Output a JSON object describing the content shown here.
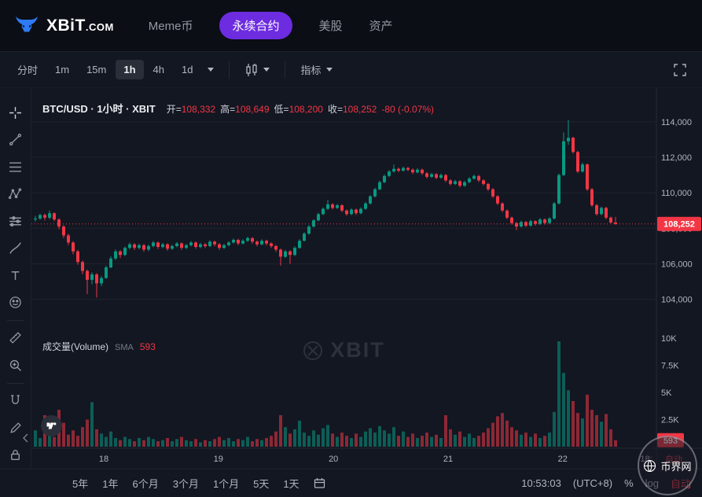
{
  "header": {
    "logo_text": "XBiT",
    "logo_suffix": ".COM",
    "nav": [
      {
        "label": "Meme币",
        "active": false
      },
      {
        "label": "永续合约",
        "active": true
      },
      {
        "label": "美股",
        "active": false
      },
      {
        "label": "资产",
        "active": false
      }
    ]
  },
  "toolbar": {
    "intervals": [
      {
        "label": "分时",
        "active": false
      },
      {
        "label": "1m",
        "active": false
      },
      {
        "label": "15m",
        "active": false
      },
      {
        "label": "1h",
        "active": true
      },
      {
        "label": "4h",
        "active": false
      },
      {
        "label": "1d",
        "active": false
      }
    ],
    "indicators_label": "指标"
  },
  "legend": {
    "symbol": "BTC/USD · 1小时 · XBIT",
    "o_label": "开=",
    "o_value": "108,332",
    "h_label": "高=",
    "h_value": "108,649",
    "l_label": "低=",
    "l_value": "108,200",
    "c_label": "收=",
    "c_value": "108,252",
    "change": "-80 (-0.07%)"
  },
  "volume_legend": {
    "title": "成交量(Volume)",
    "sma_label": "SMA",
    "sma_value": "593"
  },
  "watermark_text": "XBIT",
  "corner": {
    "auto_label": "自动"
  },
  "bottom_bar": {
    "ranges": [
      "5年",
      "1年",
      "6个月",
      "3个月",
      "1个月",
      "5天",
      "1天"
    ],
    "clock": "10:53:03",
    "tz": "(UTC+8)",
    "percent_label": "%",
    "log_label": "log",
    "auto_label": "自动"
  },
  "badge_text": "币界网",
  "colors": {
    "up": "#089981",
    "down": "#f23645",
    "accent": "#6d2ce0",
    "chart_bg": "#131722",
    "header_bg": "#0b0e15",
    "axis_text": "#b2b5be"
  },
  "chart_data": {
    "type": "candlestick",
    "title": "BTC/USD · 1小时 · XBIT",
    "symbol": "BTC/USD",
    "interval": "1h",
    "exchange": "XBIT",
    "last": {
      "open": 108332,
      "high": 108649,
      "low": 108200,
      "close": 108252,
      "change": -80,
      "change_pct": -0.07,
      "volume": 593
    },
    "last_price": 108252,
    "last_price_label": "108,252",
    "last_volume_label": "593",
    "y_ticks": [
      104000,
      106000,
      108000,
      110000,
      112000,
      114000
    ],
    "volume_ticks": [
      {
        "v": 10000,
        "label": "10K"
      },
      {
        "v": 7500,
        "label": "7.5K"
      },
      {
        "v": 5000,
        "label": "5K"
      },
      {
        "v": 2500,
        "label": "2.5K"
      }
    ],
    "time_ticks": [
      {
        "i": 14.5,
        "label": "18"
      },
      {
        "i": 38.8,
        "label": "19"
      },
      {
        "i": 63.2,
        "label": "20"
      },
      {
        "i": 87.5,
        "label": "21"
      },
      {
        "i": 111.8,
        "label": "22"
      },
      {
        "i": 129.5,
        "label": "18:"
      }
    ],
    "columns": [
      "open",
      "high",
      "low",
      "close",
      "volume"
    ],
    "candles": [
      [
        108500,
        108700,
        108380,
        108550,
        1500
      ],
      [
        108550,
        108820,
        108480,
        108750,
        800
      ],
      [
        108750,
        108830,
        108450,
        108600,
        2900
      ],
      [
        108600,
        109000,
        108520,
        108850,
        1200
      ],
      [
        108850,
        108900,
        108400,
        108500,
        900
      ],
      [
        108500,
        108560,
        107950,
        108100,
        3400
      ],
      [
        108100,
        108180,
        107450,
        107600,
        2200
      ],
      [
        107600,
        107700,
        107050,
        107200,
        1100
      ],
      [
        107200,
        107280,
        106550,
        106700,
        1500
      ],
      [
        106700,
        106780,
        105950,
        106100,
        1000
      ],
      [
        106100,
        106180,
        105420,
        105600,
        1800
      ],
      [
        105600,
        105680,
        104300,
        105100,
        2500
      ],
      [
        105100,
        105520,
        104850,
        105400,
        4100
      ],
      [
        105400,
        105480,
        104100,
        104900,
        1600
      ],
      [
        104900,
        105320,
        104750,
        105200,
        1200
      ],
      [
        105200,
        105900,
        105150,
        105800,
        900
      ],
      [
        105800,
        106420,
        105750,
        106300,
        1400
      ],
      [
        106300,
        106800,
        106220,
        106700,
        800
      ],
      [
        106700,
        106760,
        106320,
        106500,
        600
      ],
      [
        106500,
        106980,
        106440,
        106900,
        900
      ],
      [
        106900,
        107200,
        106820,
        107100,
        700
      ],
      [
        107100,
        107160,
        106780,
        106900,
        500
      ],
      [
        106900,
        107140,
        106820,
        107050,
        800
      ],
      [
        107050,
        107120,
        106680,
        106800,
        600
      ],
      [
        106800,
        107080,
        106720,
        107000,
        900
      ],
      [
        107000,
        107290,
        106930,
        107200,
        700
      ],
      [
        107200,
        107260,
        106840,
        106950,
        500
      ],
      [
        106950,
        107180,
        106880,
        107100,
        600
      ],
      [
        107100,
        107160,
        106740,
        106850,
        800
      ],
      [
        106850,
        107080,
        106780,
        107000,
        500
      ],
      [
        107000,
        107230,
        106930,
        107150,
        700
      ],
      [
        107150,
        107210,
        106790,
        106900,
        900
      ],
      [
        106900,
        107130,
        106830,
        107050,
        600
      ],
      [
        107050,
        107280,
        106980,
        107200,
        500
      ],
      [
        107200,
        107260,
        106850,
        106950,
        700
      ],
      [
        106950,
        107180,
        106880,
        107100,
        400
      ],
      [
        107100,
        107170,
        106900,
        107000,
        600
      ],
      [
        107000,
        107330,
        106940,
        107250,
        500
      ],
      [
        107250,
        107310,
        106990,
        107100,
        700
      ],
      [
        107100,
        107170,
        106790,
        106900,
        900
      ],
      [
        106900,
        107130,
        106840,
        107050,
        600
      ],
      [
        107050,
        107280,
        106990,
        107200,
        800
      ],
      [
        107200,
        107430,
        107140,
        107350,
        500
      ],
      [
        107350,
        107410,
        107040,
        107150,
        700
      ],
      [
        107150,
        107380,
        107090,
        107300,
        600
      ],
      [
        107300,
        107530,
        107240,
        107450,
        900
      ],
      [
        107450,
        107500,
        107140,
        107250,
        500
      ],
      [
        107250,
        107310,
        106990,
        107100,
        700
      ],
      [
        107100,
        107380,
        107040,
        107300,
        600
      ],
      [
        107300,
        107360,
        107040,
        107150,
        800
      ],
      [
        107150,
        107210,
        106890,
        107000,
        1000
      ],
      [
        107000,
        107060,
        106680,
        106800,
        1400
      ],
      [
        106800,
        106860,
        105900,
        106400,
        2900
      ],
      [
        106400,
        106780,
        106330,
        106700,
        1800
      ],
      [
        106700,
        106760,
        106000,
        106500,
        1200
      ],
      [
        106500,
        106980,
        106440,
        106900,
        1600
      ],
      [
        106900,
        107380,
        106850,
        107300,
        2400
      ],
      [
        107300,
        107780,
        107250,
        107700,
        1300
      ],
      [
        107700,
        108180,
        107640,
        108100,
        1000
      ],
      [
        108100,
        108520,
        108040,
        108450,
        1500
      ],
      [
        108450,
        108880,
        108390,
        108800,
        1100
      ],
      [
        108800,
        109180,
        108740,
        109100,
        1700
      ],
      [
        109100,
        109600,
        109040,
        109350,
        2000
      ],
      [
        109350,
        109420,
        109060,
        109150,
        1200
      ],
      [
        109150,
        109380,
        109090,
        109300,
        900
      ],
      [
        109300,
        109360,
        108910,
        109000,
        1300
      ],
      [
        109000,
        109070,
        108710,
        108800,
        1000
      ],
      [
        108800,
        109130,
        108740,
        109050,
        800
      ],
      [
        109050,
        109110,
        108760,
        108850,
        1200
      ],
      [
        108850,
        109180,
        108790,
        109100,
        900
      ],
      [
        109100,
        109480,
        109040,
        109400,
        1400
      ],
      [
        109400,
        109880,
        109340,
        109800,
        1700
      ],
      [
        109800,
        110280,
        109740,
        110200,
        1300
      ],
      [
        110200,
        110680,
        110140,
        110600,
        1900
      ],
      [
        110600,
        111030,
        110540,
        110950,
        1500
      ],
      [
        110950,
        111280,
        110890,
        111200,
        1200
      ],
      [
        111200,
        111600,
        111140,
        111350,
        1800
      ],
      [
        111350,
        111420,
        111160,
        111250,
        1000
      ],
      [
        111250,
        111480,
        111190,
        111400,
        1400
      ],
      [
        111400,
        111460,
        111210,
        111300,
        900
      ],
      [
        111300,
        111370,
        111060,
        111150,
        1200
      ],
      [
        111150,
        111380,
        111090,
        111300,
        800
      ],
      [
        111300,
        111360,
        111010,
        111100,
        1000
      ],
      [
        111100,
        111170,
        110810,
        110900,
        1300
      ],
      [
        110900,
        111130,
        110840,
        111050,
        900
      ],
      [
        111050,
        111110,
        110760,
        110850,
        1100
      ],
      [
        110850,
        111080,
        110790,
        111000,
        800
      ],
      [
        111000,
        111060,
        110610,
        110700,
        2900
      ],
      [
        110700,
        110770,
        110410,
        110500,
        1600
      ],
      [
        110500,
        110730,
        110440,
        110650,
        1100
      ],
      [
        110650,
        110710,
        110310,
        110400,
        1400
      ],
      [
        110400,
        110680,
        110340,
        110600,
        900
      ],
      [
        110600,
        110880,
        110540,
        110800,
        1200
      ],
      [
        110800,
        111030,
        110740,
        110950,
        800
      ],
      [
        110950,
        111010,
        110610,
        110700,
        1000
      ],
      [
        110700,
        110760,
        110410,
        110500,
        1300
      ],
      [
        110500,
        110560,
        110110,
        110200,
        1700
      ],
      [
        110200,
        110270,
        109710,
        109800,
        2200
      ],
      [
        109800,
        109870,
        109310,
        109400,
        2800
      ],
      [
        109400,
        109470,
        108910,
        109000,
        3100
      ],
      [
        109000,
        109060,
        108510,
        108600,
        2400
      ],
      [
        108600,
        108660,
        108210,
        108300,
        1800
      ],
      [
        108300,
        108360,
        107900,
        108100,
        1500
      ],
      [
        108100,
        108430,
        108040,
        108350,
        1100
      ],
      [
        108350,
        108410,
        108060,
        108150,
        1300
      ],
      [
        108150,
        108480,
        108090,
        108400,
        900
      ],
      [
        108400,
        108460,
        108160,
        108250,
        1200
      ],
      [
        108250,
        108580,
        108190,
        108500,
        800
      ],
      [
        108500,
        108560,
        108210,
        108300,
        1000
      ],
      [
        108300,
        108630,
        108240,
        108550,
        1300
      ],
      [
        108550,
        109480,
        108490,
        109400,
        3200
      ],
      [
        109400,
        111080,
        109340,
        111000,
        9700
      ],
      [
        111000,
        113400,
        110940,
        112900,
        6800
      ],
      [
        112900,
        114100,
        112700,
        113100,
        5200
      ],
      [
        113100,
        113160,
        112210,
        112300,
        4200
      ],
      [
        112300,
        112370,
        111110,
        111200,
        3100
      ],
      [
        111200,
        111700,
        111140,
        111600,
        2600
      ],
      [
        111600,
        111660,
        110110,
        110200,
        4800
      ],
      [
        110200,
        110270,
        109210,
        109300,
        3400
      ],
      [
        109300,
        109370,
        108710,
        108800,
        2900
      ],
      [
        108800,
        109230,
        108740,
        109150,
        2300
      ],
      [
        109150,
        109210,
        108510,
        108600,
        3000
      ],
      [
        108600,
        108660,
        108270,
        108330,
        1600
      ],
      [
        108332,
        108649,
        108200,
        108252,
        593
      ]
    ]
  }
}
